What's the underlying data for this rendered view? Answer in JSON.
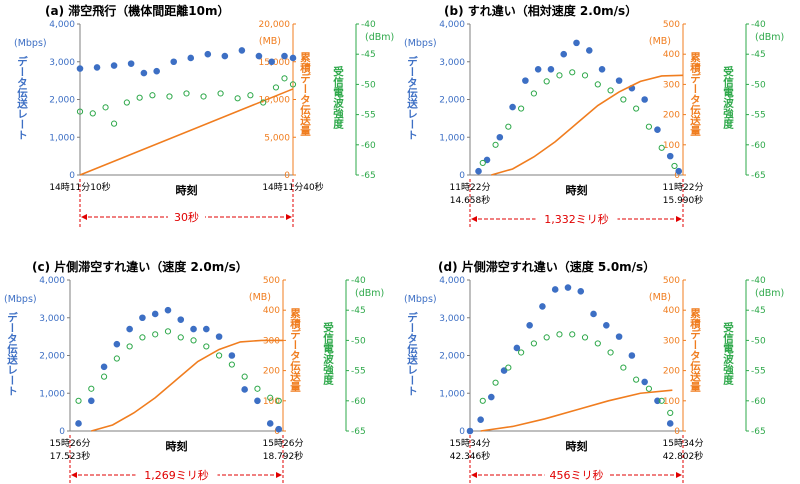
{
  "colors": {
    "blue": "#3d6fc4",
    "orange": "#f07d1f",
    "green": "#2ea84a",
    "red": "#e00000",
    "axis": "#7f7f7f"
  },
  "chart_data": [
    {
      "id": "a",
      "type": "scatter",
      "title": "(a) 滞空飛行（機体間距離10m）",
      "y1label": "データ伝送レート",
      "y1unit": "(Mbps)",
      "y2label": "累積データ伝送量",
      "y2unit": "(MB)",
      "y3label": "受信電波強度",
      "y3unit": "(dBm)",
      "xlabel": "時刻",
      "x_start": [
        "14時11分10秒"
      ],
      "x_end": [
        "14時11分40秒"
      ],
      "span": "30秒",
      "y1_ticks": [
        "0",
        "1,000",
        "2,000",
        "3,000",
        "4,000"
      ],
      "y2_ticks": [
        "0",
        "5,000",
        "10,000",
        "15,000",
        "20,000"
      ],
      "y3_ticks": [
        "-65",
        "-60",
        "-55",
        "-50",
        "-45",
        "-40"
      ],
      "y1lim": [
        0,
        4000
      ],
      "y2lim": [
        0,
        20000
      ],
      "y3lim": [
        -65,
        -40
      ],
      "series": [
        {
          "name": "データ伝送レート (Mbps)",
          "axis": "y1",
          "marker": "filled",
          "x": [
            0.0,
            0.08,
            0.16,
            0.24,
            0.3,
            0.36,
            0.44,
            0.52,
            0.6,
            0.68,
            0.76,
            0.84,
            0.9,
            0.96,
            1.0
          ],
          "values": [
            2820,
            2850,
            2900,
            2950,
            2700,
            2750,
            3000,
            3100,
            3200,
            3150,
            3300,
            3150,
            3000,
            3150,
            3100
          ]
        },
        {
          "name": "累積データ伝送量 (MB)",
          "axis": "y2",
          "marker": "line",
          "x": [
            0.0,
            1.0
          ],
          "values": [
            0,
            11400
          ]
        },
        {
          "name": "受信電波強度 (dBm)",
          "axis": "y3",
          "marker": "open",
          "x": [
            0.0,
            0.06,
            0.12,
            0.16,
            0.22,
            0.28,
            0.34,
            0.42,
            0.5,
            0.58,
            0.66,
            0.74,
            0.8,
            0.86,
            0.92,
            0.96,
            1.0
          ],
          "values": [
            -54.5,
            -54.8,
            -53.8,
            -56.5,
            -53.0,
            -52.2,
            -51.8,
            -52.0,
            -51.5,
            -52.0,
            -51.5,
            -52.3,
            -51.8,
            -53.0,
            -50.5,
            -49.0,
            -50.0
          ]
        }
      ]
    },
    {
      "id": "b",
      "type": "scatter",
      "title": "(b) すれ違い（相対速度 2.0m/s）",
      "y1label": "データ伝送レート",
      "y1unit": "(Mbps)",
      "y2label": "累積データ伝送量",
      "y2unit": "(MB)",
      "y3label": "受信電波強度",
      "y3unit": "(dBm)",
      "xlabel": "時刻",
      "x_start": [
        "11時22分",
        "14.658秒"
      ],
      "x_end": [
        "11時22分",
        "15.990秒"
      ],
      "span": "1,332ミリ秒",
      "y1_ticks": [
        "0",
        "1,000",
        "2,000",
        "3,000",
        "4,000"
      ],
      "y2_ticks": [
        "0",
        "100",
        "200",
        "300",
        "400",
        "500"
      ],
      "y3_ticks": [
        "-65",
        "-60",
        "-55",
        "-50",
        "-45",
        "-40"
      ],
      "y1lim": [
        0,
        4000
      ],
      "y2lim": [
        0,
        500
      ],
      "y3lim": [
        -65,
        -40
      ],
      "series": [
        {
          "name": "データ伝送レート (Mbps)",
          "axis": "y1",
          "marker": "filled",
          "x": [
            0.04,
            0.08,
            0.14,
            0.2,
            0.26,
            0.32,
            0.38,
            0.44,
            0.5,
            0.56,
            0.62,
            0.7,
            0.76,
            0.82,
            0.88,
            0.94,
            0.98
          ],
          "values": [
            100,
            400,
            1000,
            1800,
            2500,
            2800,
            2800,
            3200,
            3500,
            3300,
            2800,
            2500,
            2300,
            2000,
            1200,
            500,
            100
          ]
        },
        {
          "name": "累積データ伝送量 (MB)",
          "axis": "y2",
          "marker": "line",
          "x": [
            0.1,
            0.2,
            0.3,
            0.4,
            0.5,
            0.6,
            0.7,
            0.8,
            0.9,
            1.0
          ],
          "values": [
            0,
            20,
            60,
            110,
            170,
            230,
            275,
            310,
            328,
            330
          ]
        },
        {
          "name": "受信電波強度 (dBm)",
          "axis": "y3",
          "marker": "open",
          "x": [
            0.06,
            0.12,
            0.18,
            0.24,
            0.3,
            0.36,
            0.42,
            0.48,
            0.54,
            0.6,
            0.66,
            0.72,
            0.78,
            0.84,
            0.9,
            0.96
          ],
          "values": [
            -63.0,
            -60.0,
            -57.0,
            -54.0,
            -51.5,
            -49.5,
            -48.5,
            -48.0,
            -48.5,
            -50.0,
            -51.0,
            -52.5,
            -54.0,
            -57.0,
            -60.5,
            -63.5
          ]
        }
      ]
    },
    {
      "id": "c",
      "type": "scatter",
      "title": "(c) 片側滞空すれ違い（速度 2.0m/s）",
      "y1label": "データ伝送レート",
      "y1unit": "(Mbps)",
      "y2label": "累積データ伝送量",
      "y2unit": "(MB)",
      "y3label": "受信電波強度",
      "y3unit": "(dBm)",
      "xlabel": "時刻",
      "x_start": [
        "15時26分",
        "17.523秒"
      ],
      "x_end": [
        "15時26分",
        "18.792秒"
      ],
      "span": "1,269ミリ秒",
      "y1_ticks": [
        "0",
        "1,000",
        "2,000",
        "3,000",
        "4,000"
      ],
      "y2_ticks": [
        "0",
        "100",
        "200",
        "300",
        "400",
        "500"
      ],
      "y3_ticks": [
        "-65",
        "-60",
        "-55",
        "-50",
        "-45",
        "-40"
      ],
      "y1lim": [
        0,
        4000
      ],
      "y2lim": [
        0,
        500
      ],
      "y3lim": [
        -65,
        -40
      ],
      "series": [
        {
          "name": "データ伝送レート (Mbps)",
          "axis": "y1",
          "marker": "filled",
          "x": [
            0.04,
            0.1,
            0.16,
            0.22,
            0.28,
            0.34,
            0.4,
            0.46,
            0.52,
            0.58,
            0.64,
            0.7,
            0.76,
            0.82,
            0.88,
            0.94,
            0.98
          ],
          "values": [
            200,
            800,
            1700,
            2300,
            2700,
            3000,
            3100,
            3200,
            2950,
            2700,
            2700,
            2500,
            2000,
            1100,
            800,
            200,
            50
          ]
        },
        {
          "name": "累積データ伝送量 (MB)",
          "axis": "y2",
          "marker": "line",
          "x": [
            0.1,
            0.2,
            0.3,
            0.4,
            0.5,
            0.6,
            0.7,
            0.8,
            0.9,
            1.0
          ],
          "values": [
            0,
            20,
            60,
            110,
            170,
            230,
            270,
            295,
            300,
            300
          ]
        },
        {
          "name": "受信電波強度 (dBm)",
          "axis": "y3",
          "marker": "open",
          "x": [
            0.04,
            0.1,
            0.16,
            0.22,
            0.28,
            0.34,
            0.4,
            0.46,
            0.52,
            0.58,
            0.64,
            0.7,
            0.76,
            0.82,
            0.88,
            0.94,
            0.98
          ],
          "values": [
            -60.0,
            -58.0,
            -56.0,
            -53.0,
            -51.0,
            -49.5,
            -49.0,
            -48.5,
            -49.5,
            -50.0,
            -51.0,
            -52.5,
            -54.0,
            -56.0,
            -58.0,
            -59.5,
            -60.0
          ]
        }
      ]
    },
    {
      "id": "d",
      "type": "scatter",
      "title": "(d) 片側滞空すれ違い（速度 5.0m/s）",
      "y1label": "データ伝送レート",
      "y1unit": "(Mbps)",
      "y2label": "累積データ伝送量",
      "y2unit": "(MB)",
      "y3label": "受信電波強度",
      "y3unit": "(dBm)",
      "xlabel": "時刻",
      "x_start": [
        "15時34分",
        "42.346秒"
      ],
      "x_end": [
        "15時34分",
        "42.802秒"
      ],
      "span": "456ミリ秒",
      "y1_ticks": [
        "0",
        "1,000",
        "2,000",
        "3,000",
        "4,000"
      ],
      "y2_ticks": [
        "0",
        "100",
        "200",
        "300",
        "400",
        "500"
      ],
      "y3_ticks": [
        "-65",
        "-60",
        "-55",
        "-50",
        "-45",
        "-40"
      ],
      "y1lim": [
        0,
        4000
      ],
      "y2lim": [
        0,
        500
      ],
      "y3lim": [
        -65,
        -40
      ],
      "series": [
        {
          "name": "データ伝送レート (Mbps)",
          "axis": "y1",
          "marker": "filled",
          "x": [
            0.0,
            0.05,
            0.1,
            0.16,
            0.22,
            0.28,
            0.34,
            0.4,
            0.46,
            0.52,
            0.58,
            0.64,
            0.7,
            0.76,
            0.82,
            0.88,
            0.94
          ],
          "values": [
            0,
            300,
            900,
            1600,
            2200,
            2800,
            3300,
            3750,
            3800,
            3700,
            3100,
            2800,
            2500,
            2000,
            1300,
            800,
            200
          ]
        },
        {
          "name": "累積データ伝送量 (MB)",
          "axis": "y2",
          "marker": "line",
          "x": [
            0.05,
            0.2,
            0.35,
            0.5,
            0.65,
            0.8,
            0.95
          ],
          "values": [
            0,
            15,
            40,
            70,
            100,
            125,
            135
          ]
        },
        {
          "name": "受信電波強度 (dBm)",
          "axis": "y3",
          "marker": "open",
          "x": [
            0.06,
            0.12,
            0.18,
            0.24,
            0.3,
            0.36,
            0.42,
            0.48,
            0.54,
            0.6,
            0.66,
            0.72,
            0.78,
            0.84,
            0.9,
            0.94
          ],
          "values": [
            -60.0,
            -57.0,
            -54.5,
            -52.0,
            -50.5,
            -49.5,
            -49.0,
            -49.0,
            -49.5,
            -50.5,
            -52.0,
            -54.5,
            -56.5,
            -58.0,
            -60.0,
            -62.0
          ]
        }
      ]
    }
  ]
}
